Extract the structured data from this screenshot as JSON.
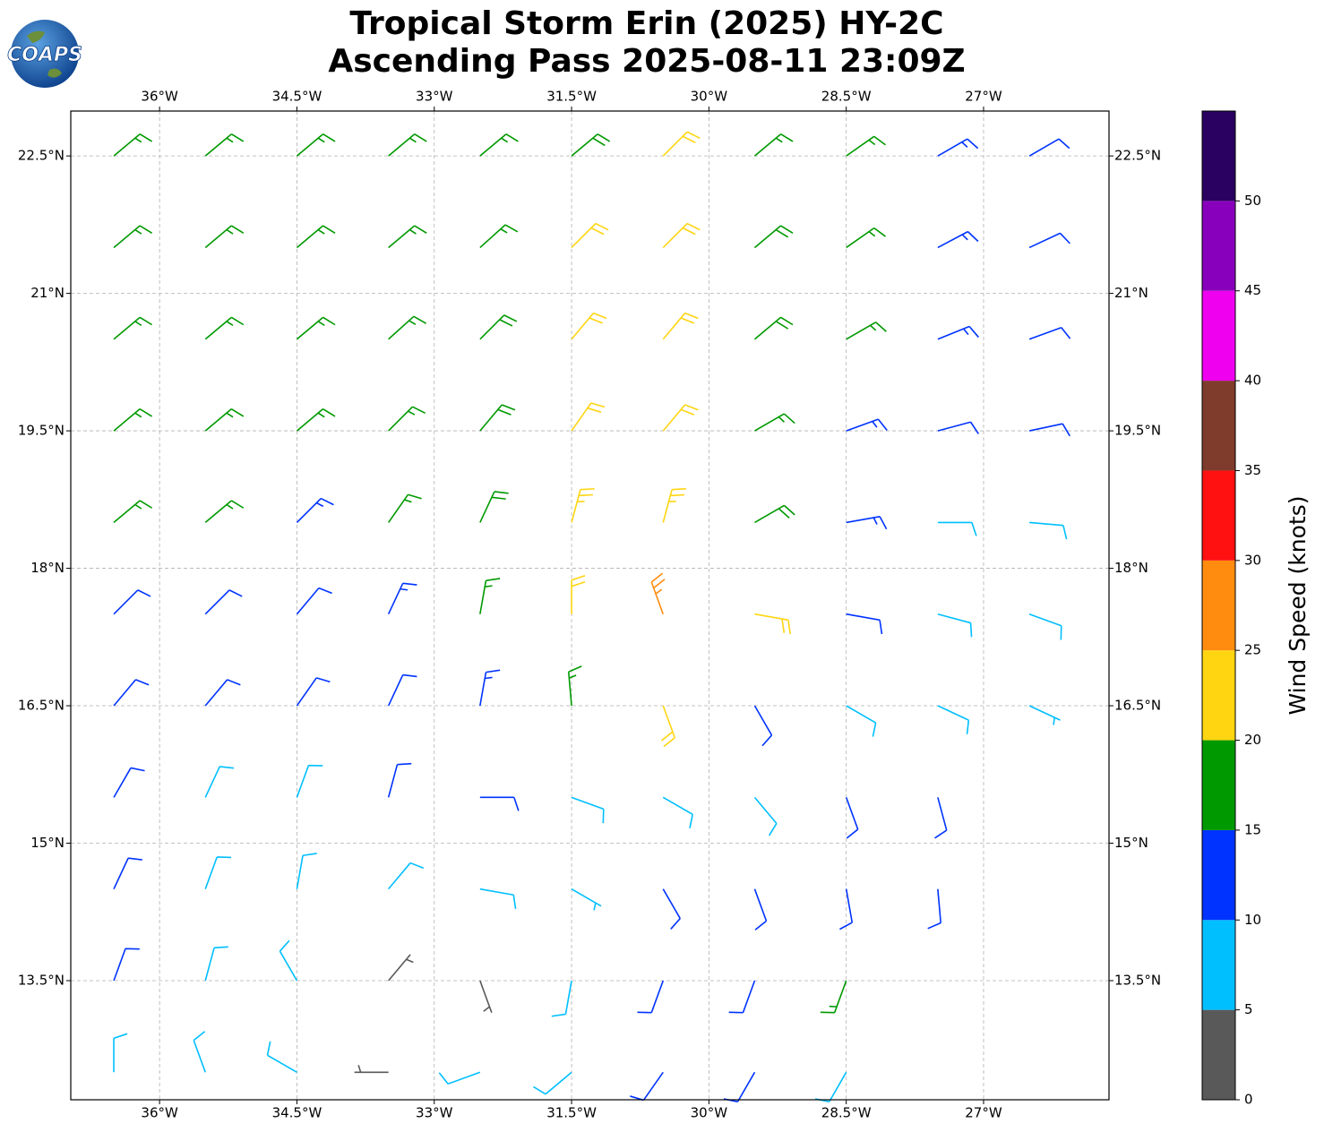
{
  "chart_data": {
    "type": "wind-barbs",
    "logo": "COAPS",
    "title": "Tropical Storm Erin (2025) HY-2C",
    "subtitle": "Ascending Pass 2025-08-11 23:09Z",
    "xlim": [
      -36.97,
      -25.63
    ],
    "ylim": [
      12.2,
      22.99
    ],
    "xticks": [
      {
        "value": -36,
        "label": "36°W"
      },
      {
        "value": -34.5,
        "label": "34.5°W"
      },
      {
        "value": -33,
        "label": "33°W"
      },
      {
        "value": -31.5,
        "label": "31.5°W"
      },
      {
        "value": -30,
        "label": "30°W"
      },
      {
        "value": -28.5,
        "label": "28.5°W"
      },
      {
        "value": -27,
        "label": "27°W"
      }
    ],
    "yticks": [
      {
        "value": 13.5,
        "label": "13.5°N"
      },
      {
        "value": 15,
        "label": "15°N"
      },
      {
        "value": 16.5,
        "label": "16.5°N"
      },
      {
        "value": 18,
        "label": "18°N"
      },
      {
        "value": 19.5,
        "label": "19.5°N"
      },
      {
        "value": 21,
        "label": "21°N"
      },
      {
        "value": 22.5,
        "label": "22.5°N"
      }
    ],
    "grid": true,
    "lons": [
      -36.5,
      -35.5,
      -34.5,
      -33.5,
      -32.5,
      -31.5,
      -30.5,
      -29.5,
      -28.5,
      -27.5,
      -26.5
    ],
    "rows": [
      {
        "lat": 22.5,
        "speed": [
          17,
          17,
          17,
          17,
          17,
          18,
          21,
          17,
          16,
          13,
          12
        ],
        "dir": [
          50,
          50,
          50,
          50,
          50,
          50,
          45,
          50,
          55,
          60,
          60
        ]
      },
      {
        "lat": 21.5,
        "speed": [
          17,
          17,
          17,
          17,
          17,
          20,
          22,
          18,
          16,
          13,
          12
        ],
        "dir": [
          50,
          50,
          50,
          50,
          48,
          45,
          45,
          50,
          55,
          62,
          65
        ]
      },
      {
        "lat": 20.5,
        "speed": [
          17,
          17,
          17,
          17,
          18,
          22,
          22,
          19,
          16,
          14,
          12
        ],
        "dir": [
          50,
          50,
          50,
          48,
          45,
          40,
          40,
          50,
          60,
          68,
          70
        ]
      },
      {
        "lat": 19.5,
        "speed": [
          17,
          17,
          17,
          17,
          18,
          22,
          21,
          16,
          13,
          12,
          11
        ],
        "dir": [
          50,
          50,
          50,
          45,
          40,
          35,
          40,
          60,
          70,
          75,
          78
        ]
      },
      {
        "lat": 18.5,
        "speed": [
          17,
          16,
          13,
          17,
          18,
          23,
          24,
          18,
          13,
          9,
          9
        ],
        "dir": [
          50,
          50,
          45,
          35,
          25,
          15,
          15,
          60,
          80,
          90,
          95
        ]
      },
      {
        "lat": 17.5,
        "speed": [
          12,
          12,
          12,
          13,
          17,
          22,
          27,
          22,
          12,
          8,
          8
        ],
        "dir": [
          45,
          45,
          40,
          25,
          10,
          0,
          340,
          100,
          100,
          105,
          110
        ]
      },
      {
        "lat": 16.5,
        "speed": [
          12,
          12,
          12,
          12,
          13,
          16,
          20,
          12,
          9,
          8,
          7
        ],
        "dir": [
          40,
          40,
          35,
          25,
          10,
          355,
          160,
          150,
          120,
          115,
          115
        ]
      },
      {
        "lat": 15.5,
        "speed": [
          12,
          8,
          8,
          11,
          12,
          9,
          8,
          9,
          12,
          11,
          null
        ],
        "dir": [
          30,
          25,
          20,
          15,
          90,
          110,
          120,
          140,
          160,
          165,
          null
        ]
      },
      {
        "lat": 14.5,
        "speed": [
          12,
          8,
          8,
          8,
          8,
          7,
          12,
          12,
          12,
          11,
          null
        ],
        "dir": [
          25,
          20,
          10,
          40,
          100,
          120,
          150,
          160,
          170,
          175,
          null
        ]
      },
      {
        "lat": 13.5,
        "speed": [
          12,
          8,
          8,
          3,
          4,
          8,
          12,
          12,
          15,
          null,
          null
        ],
        "dir": [
          20,
          15,
          330,
          40,
          160,
          190,
          200,
          200,
          200,
          null,
          null
        ]
      },
      {
        "lat": 12.5,
        "speed": [
          8,
          8,
          8,
          3,
          8,
          9,
          12,
          12,
          9,
          null,
          null
        ],
        "dir": [
          0,
          340,
          300,
          270,
          250,
          230,
          215,
          210,
          210,
          null,
          null
        ]
      }
    ],
    "colorbar": {
      "label": "Wind Speed (knots)",
      "bounds": [
        0,
        5,
        10,
        15,
        20,
        25,
        30,
        35,
        40,
        45,
        50,
        55
      ],
      "colors": [
        "#595959",
        "#00bfff",
        "#0033ff",
        "#009900",
        "#ffd511",
        "#ff8c0f",
        "#ff1111",
        "#7f3b2c",
        "#ef00ef",
        "#8800bb",
        "#2a0060"
      ],
      "ticks": [
        0,
        5,
        10,
        15,
        20,
        25,
        30,
        35,
        40,
        45,
        50
      ]
    }
  }
}
